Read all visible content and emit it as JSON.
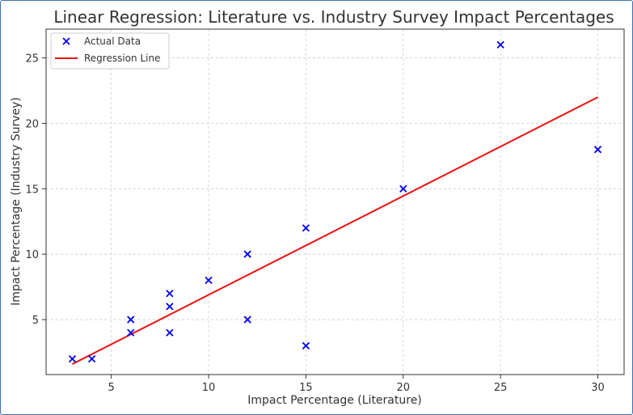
{
  "chart_data": {
    "type": "scatter",
    "title": "Linear Regression: Literature vs. Industry Survey Impact Percentages",
    "xlabel": "Impact Percentage (Literature)",
    "ylabel": "Impact Percentage (Industry Survey)",
    "xlim": [
      1.65,
      31.35
    ],
    "ylim": [
      0.8,
      27.2
    ],
    "xticks": [
      5,
      10,
      15,
      20,
      25,
      30
    ],
    "yticks": [
      5,
      10,
      15,
      20,
      25
    ],
    "grid": true,
    "legend_position": "top-left",
    "series": [
      {
        "name": "Actual Data",
        "kind": "scatter",
        "marker": "x",
        "color": "#0000ee",
        "points": [
          [
            3,
            2
          ],
          [
            4,
            2
          ],
          [
            6,
            5
          ],
          [
            6,
            4
          ],
          [
            8,
            7
          ],
          [
            8,
            6
          ],
          [
            8,
            4
          ],
          [
            10,
            8
          ],
          [
            12,
            10
          ],
          [
            12,
            5
          ],
          [
            15,
            12
          ],
          [
            15,
            3
          ],
          [
            20,
            15
          ],
          [
            25,
            26
          ],
          [
            30,
            18
          ]
        ]
      },
      {
        "name": "Regression Line",
        "kind": "line",
        "color": "#ee1111",
        "points": [
          [
            3,
            1.6
          ],
          [
            30,
            22.0
          ]
        ]
      }
    ]
  }
}
